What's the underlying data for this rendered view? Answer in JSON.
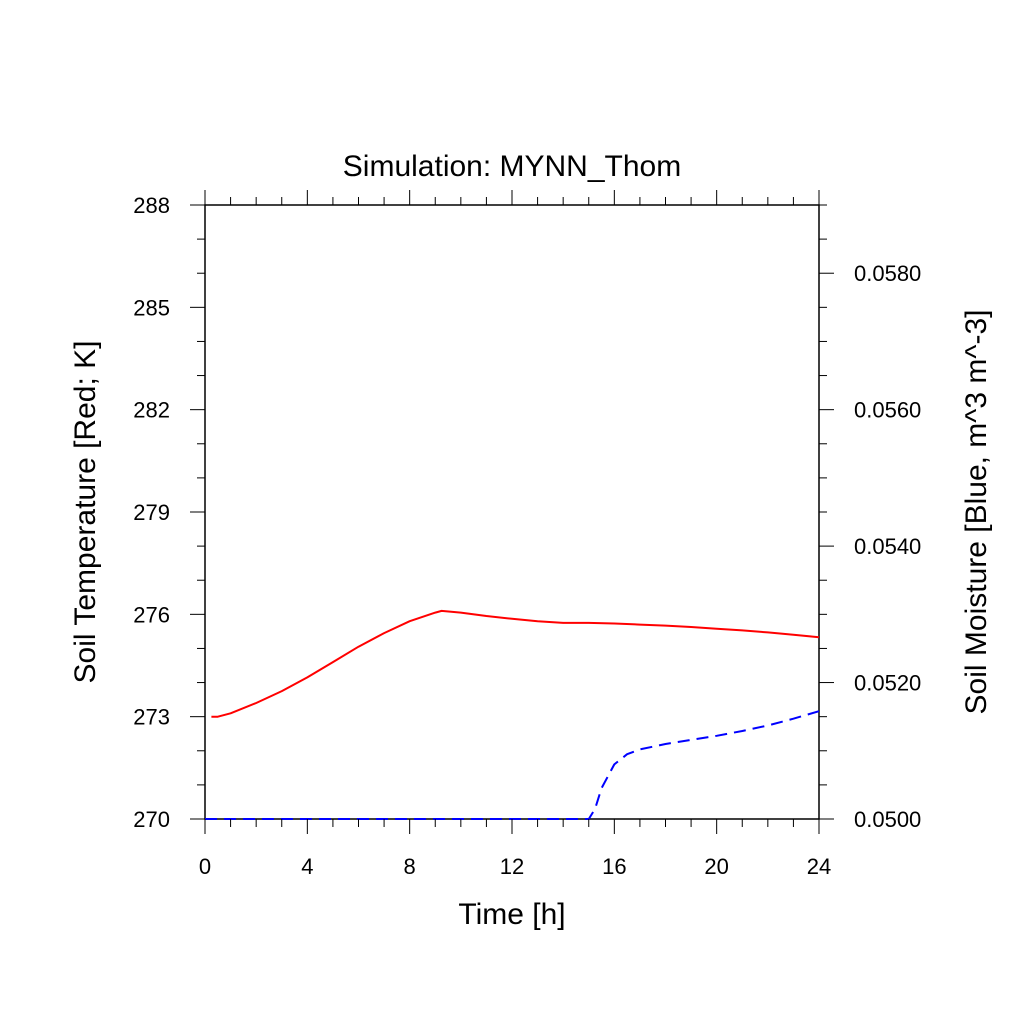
{
  "chart_data": {
    "type": "line",
    "title": "Simulation: MYNN_Thom",
    "xlabel": "Time [h]",
    "ylabel_left": "Soil Temperature [Red; K]",
    "ylabel_right": "Soil Moisture [Blue, m^3 m^-3]",
    "xlim": [
      0,
      24
    ],
    "ylim_left": [
      270,
      288
    ],
    "ylim_right": [
      0.05,
      0.059
    ],
    "x_ticks": [
      "0",
      "4",
      "8",
      "12",
      "16",
      "20",
      "24"
    ],
    "y_left_ticks": [
      "270",
      "273",
      "276",
      "279",
      "282",
      "285",
      "288"
    ],
    "y_right_ticks": [
      "0.0500",
      "0.0520",
      "0.0540",
      "0.0560",
      "0.0580"
    ],
    "grid": false,
    "series": [
      {
        "axis": "left",
        "color": "#ff0000",
        "dash": "solid",
        "x": [
          0.25,
          0.5,
          1,
          2,
          3,
          4,
          5,
          6,
          7,
          8,
          9,
          9.25,
          10,
          11,
          12,
          13,
          14,
          15,
          16,
          17,
          18,
          19,
          20,
          21,
          22,
          23,
          24
        ],
        "y": [
          273.0,
          273.0,
          273.1,
          273.4,
          273.75,
          274.15,
          274.6,
          275.05,
          275.45,
          275.8,
          276.05,
          276.1,
          276.05,
          275.95,
          275.87,
          275.8,
          275.75,
          275.75,
          275.73,
          275.7,
          275.67,
          275.63,
          275.58,
          275.53,
          275.47,
          275.4,
          275.33
        ]
      },
      {
        "axis": "right",
        "color": "#0000ff",
        "dash": "dashed",
        "x": [
          0,
          2,
          4,
          6,
          8,
          10,
          12,
          14,
          15,
          15.25,
          15.5,
          16,
          16.5,
          17,
          18,
          19,
          20,
          21,
          22,
          23,
          24
        ],
        "y": [
          0.05,
          0.05,
          0.05,
          0.05,
          0.05,
          0.05,
          0.05,
          0.05,
          0.05,
          0.05015,
          0.05045,
          0.0508,
          0.05095,
          0.05102,
          0.0511,
          0.05116,
          0.05122,
          0.05129,
          0.05137,
          0.05147,
          0.05158
        ]
      }
    ]
  }
}
